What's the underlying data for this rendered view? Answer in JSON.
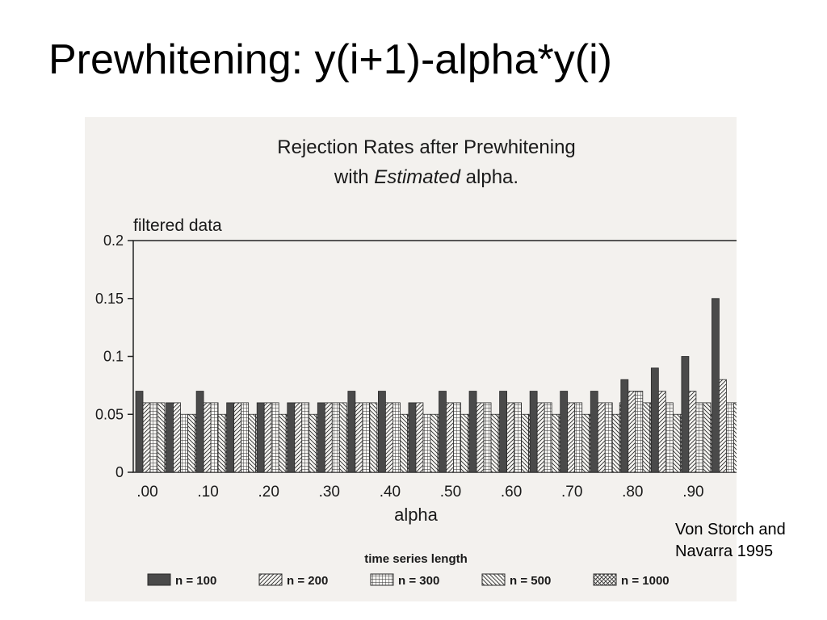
{
  "slide": {
    "title": "Prewhitening: y(i+1)-alpha*y(i)",
    "citation_line1": "Von Storch and",
    "citation_line2": "Navarra 1995"
  },
  "chart_data": {
    "type": "bar",
    "title_line1": "Rejection Rates after Prewhitening",
    "title_line2_prefix": "with ",
    "title_line2_emph": "Estimated",
    "title_line2_suffix": " alpha.",
    "panel_label": "filtered data",
    "xlabel": "alpha",
    "legend_title": "time series length",
    "ylim": [
      0,
      0.2
    ],
    "yticks": [
      0,
      0.05,
      0.1,
      0.15,
      0.2
    ],
    "ytick_labels": [
      "0",
      "0.05",
      "0.1",
      "0.15",
      "0.2"
    ],
    "categories": [
      ".00",
      ".05",
      ".10",
      ".15",
      ".20",
      ".25",
      ".30",
      ".35",
      ".40",
      ".45",
      ".50",
      ".55",
      ".60",
      ".65",
      ".70",
      ".75",
      ".80",
      ".85",
      ".90",
      ".95"
    ],
    "xtick_labels": [
      ".00",
      "",
      ".10",
      "",
      ".20",
      "",
      ".30",
      "",
      ".40",
      "",
      ".50",
      "",
      ".60",
      "",
      ".70",
      "",
      ".80",
      "",
      ".90",
      ""
    ],
    "series": [
      {
        "name": "n = 100",
        "pattern": "solid",
        "values": [
          0.07,
          0.06,
          0.07,
          0.06,
          0.06,
          0.06,
          0.06,
          0.07,
          0.07,
          0.06,
          0.07,
          0.07,
          0.07,
          0.07,
          0.07,
          0.07,
          0.08,
          0.09,
          0.1,
          0.15
        ]
      },
      {
        "name": "n = 200",
        "pattern": "diagonal",
        "values": [
          0.06,
          0.06,
          0.06,
          0.06,
          0.06,
          0.06,
          0.06,
          0.06,
          0.06,
          0.06,
          0.06,
          0.06,
          0.06,
          0.06,
          0.06,
          0.06,
          0.07,
          0.07,
          0.07,
          0.08
        ]
      },
      {
        "name": "n = 300",
        "pattern": "grid",
        "values": [
          0.06,
          0.05,
          0.06,
          0.06,
          0.06,
          0.06,
          0.06,
          0.06,
          0.06,
          0.05,
          0.06,
          0.06,
          0.06,
          0.06,
          0.06,
          0.06,
          0.07,
          0.06,
          0.06,
          0.06
        ]
      },
      {
        "name": "n = 500",
        "pattern": "backdiagonal",
        "values": [
          0.06,
          0.05,
          0.05,
          0.05,
          0.05,
          0.05,
          0.06,
          0.06,
          0.05,
          0.05,
          0.05,
          0.05,
          0.05,
          0.05,
          0.05,
          0.05,
          0.06,
          0.05,
          0.06,
          0.06
        ]
      },
      {
        "name": "n = 1000",
        "pattern": "crosshatch",
        "values": [
          0.05,
          0.05,
          0.05,
          0.05,
          0.05,
          0.05,
          0.05,
          0.05,
          0.05,
          0.05,
          0.05,
          0.05,
          0.05,
          0.05,
          0.05,
          0.06,
          0.06,
          0.05,
          0.05,
          0.05
        ]
      }
    ],
    "grid": false,
    "legend_position": "bottom",
    "colors": {
      "ink": "#2b2b2b",
      "solid_fill": "#4a4a4a",
      "paper": "#f3f1ee",
      "axis": "#222222"
    }
  }
}
